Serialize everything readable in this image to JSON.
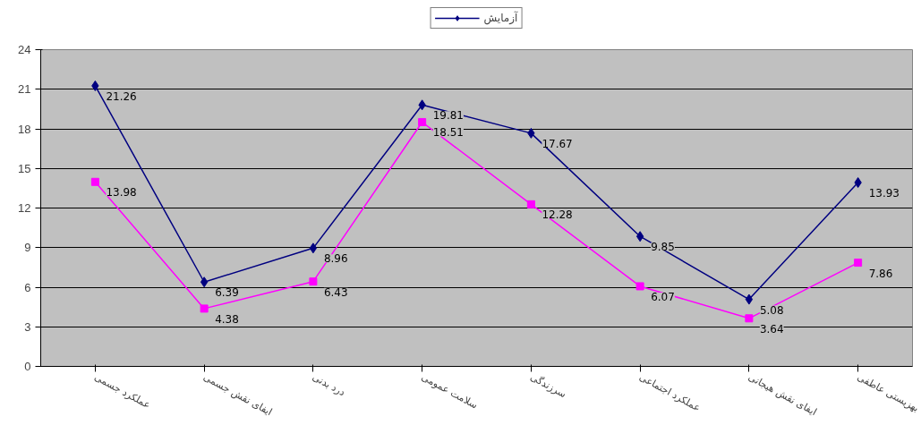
{
  "chart_data": {
    "type": "line",
    "categories": [
      "عملکرد جسمی",
      "ایفای نقش جسمی",
      "درد بدنی",
      "سلامت عمومی",
      "سرزندگی",
      "عملکرد اجتماعی",
      "ایفای نقش هیجانی",
      "بهزیستی عاطفی"
    ],
    "series": [
      {
        "name": "آزمایش",
        "color": "#000080",
        "marker": "diamond",
        "values": [
          21.26,
          6.39,
          8.96,
          19.81,
          17.67,
          9.85,
          5.08,
          13.93
        ]
      },
      {
        "color": "#ff00ff",
        "marker": "square",
        "values": [
          13.98,
          4.38,
          6.43,
          18.51,
          12.28,
          6.07,
          3.64,
          7.86
        ]
      }
    ],
    "ylim": [
      0,
      24
    ],
    "yticks": [
      0,
      3,
      6,
      9,
      12,
      15,
      18,
      21,
      24
    ],
    "grid": "y",
    "legend": "top",
    "data_labels": true,
    "line_style": "solid"
  }
}
